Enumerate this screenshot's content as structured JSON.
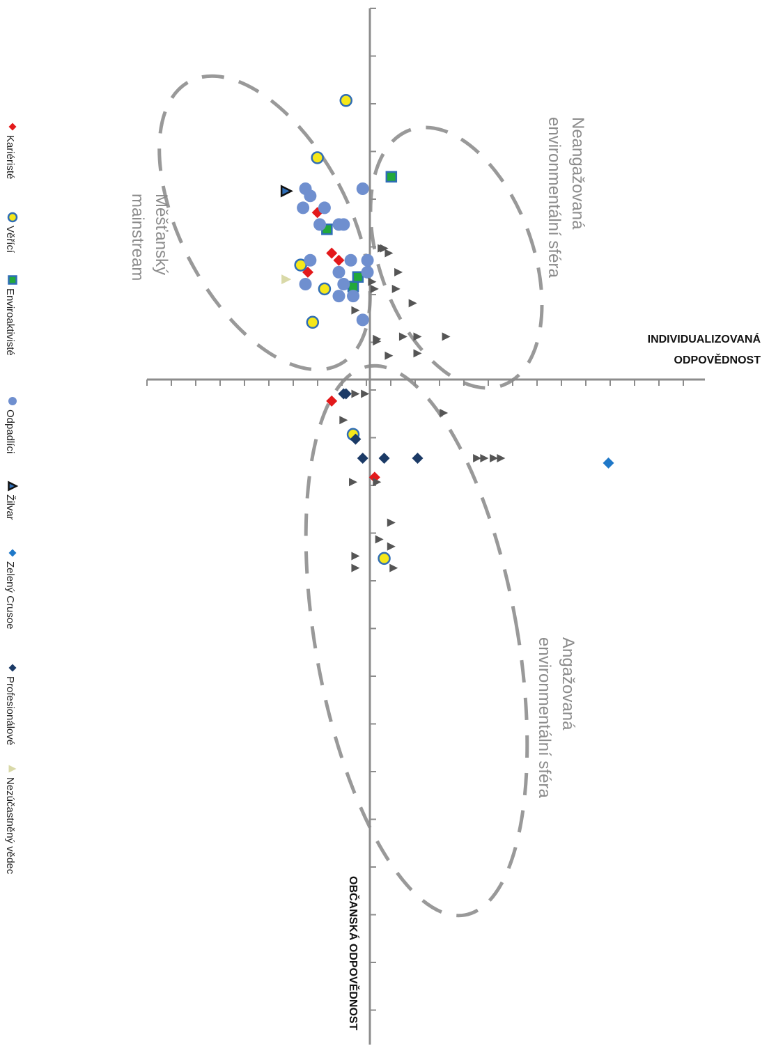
{
  "chart_data": {
    "type": "scatter",
    "orientation": "rotated-90-clockwise",
    "axes": {
      "horizontal": {
        "label_line1": "INDIVIDUALIZOVANÁ",
        "label_line2": "ODPOVĚDNOST"
      },
      "vertical": {
        "label": "OBČANSKÁ ODPOVĚDNOST"
      }
    },
    "clusters": [
      {
        "label_line1": "Měšťanský",
        "label_line2": "mainstream"
      },
      {
        "label_line1": "Neangažovaná",
        "label_line2": "environmentální sféra"
      },
      {
        "label_line1": "Angažovaná",
        "label_line2": "environmentální sféra"
      }
    ],
    "legend": [
      {
        "name": "Kariéristé",
        "marker": "diamond",
        "color": "#e3191b"
      },
      {
        "name": "Věřící",
        "marker": "circle-outlined",
        "color": "#f5e71a",
        "edge": "#2f6db5"
      },
      {
        "name": "Enviroaktivisté",
        "marker": "square-outlined",
        "color": "#22a83a",
        "edge": "#2f6db5"
      },
      {
        "name": "Odpadlíci",
        "marker": "circle",
        "color": "#6f8fcf"
      },
      {
        "name": "Žilvar",
        "marker": "triangle-outlined",
        "color": "#2f6db5",
        "edge": "#111111"
      },
      {
        "name": "Zelený Crusoe",
        "marker": "diamond",
        "color": "#1f78c8"
      },
      {
        "name": "Profesionálové",
        "marker": "diamond",
        "color": "#1b3a66"
      },
      {
        "name": "Nezúčastněný vědec",
        "marker": "triangle",
        "color": "#d9d9a8"
      }
    ],
    "unlabeled_series_color": "#555555",
    "series": [
      {
        "name": "Kariéristé",
        "points": [
          [
            -7,
            -2.2
          ],
          [
            -5.3,
            -1.6
          ],
          [
            -5,
            -1.3
          ],
          [
            -4.5,
            -2.6
          ],
          [
            0.9,
            -1.6
          ],
          [
            4.1,
            0.2
          ]
        ]
      },
      {
        "name": "Věřící",
        "points": [
          [
            7.5,
            0.6
          ],
          [
            2.3,
            -0.7
          ],
          [
            -2.4,
            -2.4
          ],
          [
            -3.8,
            -1.9
          ],
          [
            -4.8,
            -2.9
          ],
          [
            -9.3,
            -2.2
          ],
          [
            -11.7,
            -1.0
          ]
        ]
      },
      {
        "name": "Enviroaktivisté",
        "points": [
          [
            -3.9,
            -0.7
          ],
          [
            -4.3,
            -0.5
          ],
          [
            -8.5,
            0.9
          ],
          [
            -6.3,
            -1.8
          ]
        ]
      },
      {
        "name": "Odpadlíci",
        "points": [
          [
            -8,
            -0.3
          ],
          [
            -8,
            -2.7
          ],
          [
            -6.5,
            -1.3
          ],
          [
            -4.5,
            -0.1
          ],
          [
            -4.5,
            -1.3
          ],
          [
            -5,
            -2.5
          ],
          [
            -7.2,
            -2.8
          ],
          [
            -7.7,
            -2.5
          ],
          [
            -7.2,
            -1.9
          ],
          [
            -6.5,
            -1.1
          ],
          [
            -5,
            -0.8
          ],
          [
            -4,
            -2.7
          ],
          [
            -4,
            -1.1
          ],
          [
            -5,
            -0.1
          ],
          [
            -6.5,
            -2.1
          ],
          [
            -3.5,
            -0.7
          ],
          [
            -2.5,
            -0.3
          ],
          [
            -3.5,
            -1.3
          ]
        ]
      },
      {
        "name": "Žilvar",
        "points": [
          [
            -7.9,
            -3.5
          ]
        ]
      },
      {
        "name": "Zelený Crusoe",
        "points": [
          [
            3.5,
            10
          ]
        ]
      },
      {
        "name": "Profesionálové",
        "points": [
          [
            0.6,
            -1.0
          ],
          [
            0.6,
            -1.1
          ],
          [
            3.3,
            -0.3
          ],
          [
            3.3,
            0.6
          ],
          [
            2.5,
            -0.6
          ],
          [
            3.3,
            2.0
          ]
        ]
      },
      {
        "name": "Nezúčastněný vědec",
        "points": [
          [
            -4.2,
            -3.5
          ]
        ]
      },
      {
        "name": "",
        "points": [
          [
            -3.8,
            0.2
          ],
          [
            -3.8,
            1.1
          ],
          [
            -5.5,
            0.5
          ],
          [
            -5.3,
            0.8
          ],
          [
            -5.5,
            0.6
          ],
          [
            -4.1,
            0.1
          ],
          [
            -4.5,
            1.2
          ],
          [
            -2.9,
            -0.6
          ],
          [
            -3.2,
            1.8
          ],
          [
            -1.8,
            3.2
          ],
          [
            -1.8,
            1.4
          ],
          [
            -1.7,
            0.3
          ],
          [
            -1.1,
            2.0
          ],
          [
            -1.0,
            0.8
          ],
          [
            -1.6,
            0.3
          ],
          [
            -1.8,
            2.0
          ],
          [
            0.6,
            -0.6
          ],
          [
            0.6,
            -0.2
          ],
          [
            1.7,
            -1.1
          ],
          [
            1.4,
            3.1
          ],
          [
            3.3,
            4.5
          ],
          [
            3.3,
            4.8
          ],
          [
            3.3,
            5.2
          ],
          [
            3.3,
            5.5
          ],
          [
            4.3,
            0.3
          ],
          [
            4.3,
            -0.7
          ],
          [
            6.0,
            0.9
          ],
          [
            6.7,
            0.4
          ],
          [
            7.0,
            0.9
          ],
          [
            7.9,
            1.0
          ],
          [
            7.4,
            -0.6
          ],
          [
            7.9,
            -0.6
          ]
        ]
      }
    ]
  }
}
